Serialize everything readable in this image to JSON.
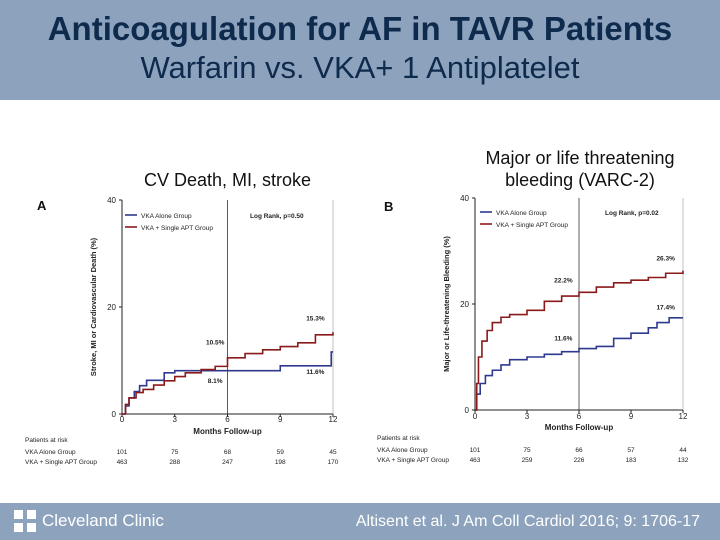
{
  "header": {
    "title": "Anticoagulation for AF in TAVR Patients",
    "subtitle": "Warfarin vs. VKA+ 1 Antiplatelet"
  },
  "footer": {
    "logo_text": "Cleveland Clinic",
    "citation": "Altisent et al. J Am Coll Cardiol 2016; 9: 1706-17"
  },
  "colors": {
    "header_bg": "#8da3bd",
    "vka_alone": "#2f3a8f",
    "vka_apt": "#8b1a1a"
  },
  "chart_data": [
    {
      "type": "line",
      "caption": "CV Death, MI, stroke",
      "panel_label": "A",
      "ylabel": "Stroke, MI or Cardiovascular Death (%)",
      "xlabel": "Months Follow-up",
      "xlim": [
        0,
        12
      ],
      "ylim": [
        0,
        40
      ],
      "xticks": [
        "0",
        "3",
        "6",
        "9",
        "12"
      ],
      "yticks": [
        "0",
        "20",
        "40"
      ],
      "logrank": "Log Rank, p=0.50",
      "series": [
        {
          "name": "VKA Alone Group",
          "color": "vka_alone",
          "x": [
            0,
            0.2,
            0.4,
            0.7,
            1.0,
            1.4,
            2.0,
            2.4,
            3.0,
            3.5,
            4.5,
            6.0,
            9.0,
            11.9,
            12.0
          ],
          "y": [
            0,
            1.5,
            3.0,
            4.2,
            5.3,
            6.3,
            6.3,
            7.7,
            8.1,
            8.1,
            8.1,
            8.1,
            9.0,
            11.6,
            11.6
          ]
        },
        {
          "name": "VKA + Single APT Group",
          "color": "vka_apt",
          "x": [
            0,
            0.2,
            0.4,
            0.8,
            1.2,
            1.8,
            2.4,
            3.0,
            3.6,
            4.5,
            5.3,
            6.0,
            7.0,
            8.0,
            9.0,
            10.0,
            11.0,
            12.0
          ],
          "y": [
            0,
            1.8,
            3.0,
            4.0,
            4.6,
            5.4,
            6.2,
            7.0,
            7.7,
            8.3,
            8.9,
            10.5,
            11.3,
            12.0,
            12.6,
            13.3,
            14.8,
            15.3
          ]
        }
      ],
      "annotations": [
        {
          "label": "15.3%",
          "x": 11.0,
          "y": 17.5
        },
        {
          "label": "10.5%",
          "x": 5.3,
          "y": 13.0
        },
        {
          "label": "8.1%",
          "x": 5.3,
          "y": 5.8
        },
        {
          "label": "11.6%",
          "x": 11.0,
          "y": 7.5
        }
      ],
      "at_risk": {
        "title": "Patients at risk",
        "rows": [
          {
            "label": "VKA Alone Group",
            "values": [
              "101",
              "75",
              "68",
              "59",
              "45"
            ]
          },
          {
            "label": "VKA + Single APT Group",
            "values": [
              "463",
              "288",
              "247",
              "198",
              "170"
            ]
          }
        ]
      }
    },
    {
      "type": "line",
      "caption": "Major or life threatening bleeding (VARC-2)",
      "panel_label": "B",
      "ylabel": "Major or Life-threatening Bleeding (%)",
      "xlabel": "Months Follow-up",
      "xlim": [
        0,
        12
      ],
      "ylim": [
        0,
        40
      ],
      "xticks": [
        "0",
        "3",
        "6",
        "9",
        "12"
      ],
      "yticks": [
        "0",
        "20",
        "40"
      ],
      "logrank": "Log Rank, p=0.02",
      "series": [
        {
          "name": "VKA Alone Group",
          "color": "vka_alone",
          "x": [
            0,
            0.1,
            0.3,
            0.6,
            1.0,
            1.5,
            2.0,
            3.0,
            4.0,
            5.0,
            6.0,
            7.0,
            8.0,
            9.0,
            10.0,
            10.5,
            11.2,
            12.0
          ],
          "y": [
            0,
            3.0,
            5.0,
            6.5,
            7.5,
            8.5,
            9.5,
            10.0,
            10.5,
            11.0,
            11.6,
            12.0,
            13.5,
            14.5,
            15.5,
            16.5,
            17.4,
            17.4
          ]
        },
        {
          "name": "VKA + Single APT Group",
          "color": "vka_apt",
          "x": [
            0,
            0.1,
            0.2,
            0.4,
            0.7,
            1.0,
            1.5,
            2.0,
            3.0,
            4.0,
            5.0,
            6.0,
            7.0,
            8.0,
            9.0,
            10.0,
            11.0,
            12.0
          ],
          "y": [
            0,
            5.0,
            10.0,
            13.0,
            15.0,
            16.5,
            17.5,
            18.0,
            18.8,
            20.5,
            21.5,
            22.2,
            23.2,
            24.0,
            24.5,
            25.0,
            25.8,
            26.3
          ]
        }
      ],
      "annotations": [
        {
          "label": "26.3%",
          "x": 11.0,
          "y": 28.2
        },
        {
          "label": "22.2%",
          "x": 5.1,
          "y": 24.1
        },
        {
          "label": "11.6%",
          "x": 5.1,
          "y": 13.1
        },
        {
          "label": "17.4%",
          "x": 11.0,
          "y": 19.0
        }
      ],
      "at_risk": {
        "title": "Patients at risk",
        "rows": [
          {
            "label": "VKA Alone Group",
            "values": [
              "101",
              "75",
              "66",
              "57",
              "44"
            ]
          },
          {
            "label": "VKA + Single APT Group",
            "values": [
              "463",
              "259",
              "226",
              "183",
              "132"
            ]
          }
        ]
      }
    }
  ]
}
